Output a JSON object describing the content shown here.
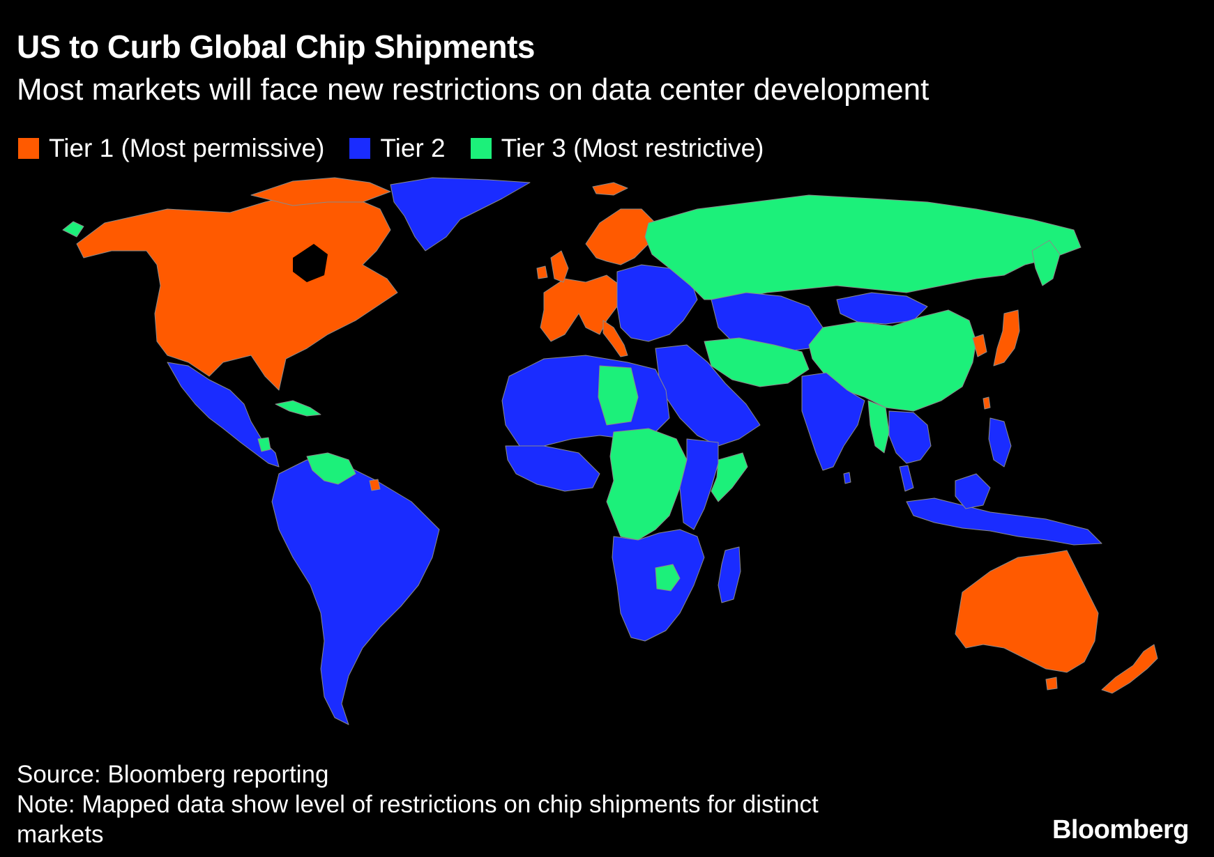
{
  "header": {
    "title": "US to Curb Global Chip Shipments",
    "subtitle": "Most markets will face new restrictions on data center development"
  },
  "legend": [
    {
      "label": "Tier 1 (Most permissive)",
      "color": "#ff5a00"
    },
    {
      "label": "Tier 2",
      "color": "#1a2cff"
    },
    {
      "label": "Tier 3 (Most restrictive)",
      "color": "#1cf07a"
    }
  ],
  "colors": {
    "tier1": "#ff5a00",
    "tier2": "#1a2cff",
    "tier3": "#1cf07a",
    "background": "#000000",
    "border": "#8a8a8a"
  },
  "map": {
    "projection": "world",
    "regions": [
      {
        "name": "North America",
        "tier": "tier1"
      },
      {
        "name": "Greenland",
        "tier": "tier2"
      },
      {
        "name": "Alaska",
        "tier": "tier1"
      },
      {
        "name": "Mexico and Central America",
        "tier": "tier2"
      },
      {
        "name": "Cuba",
        "tier": "tier3"
      },
      {
        "name": "South America",
        "tier": "tier2"
      },
      {
        "name": "Venezuela",
        "tier": "tier3"
      },
      {
        "name": "Western Europe",
        "tier": "tier1"
      },
      {
        "name": "Scandinavia",
        "tier": "tier1"
      },
      {
        "name": "Eastern Europe",
        "tier": "tier2"
      },
      {
        "name": "Russia",
        "tier": "tier3"
      },
      {
        "name": "Central Asia",
        "tier": "tier2"
      },
      {
        "name": "Mongolia",
        "tier": "tier2"
      },
      {
        "name": "China",
        "tier": "tier3"
      },
      {
        "name": "Iran and Afghanistan",
        "tier": "tier3"
      },
      {
        "name": "India",
        "tier": "tier2"
      },
      {
        "name": "Middle East",
        "tier": "tier2"
      },
      {
        "name": "North Africa",
        "tier": "tier2"
      },
      {
        "name": "Libya",
        "tier": "tier3"
      },
      {
        "name": "Central Africa",
        "tier": "tier3"
      },
      {
        "name": "Southern Africa",
        "tier": "tier2"
      },
      {
        "name": "Zimbabwe",
        "tier": "tier3"
      },
      {
        "name": "Somalia",
        "tier": "tier3"
      },
      {
        "name": "Madagascar",
        "tier": "tier2"
      },
      {
        "name": "Southeast Asia",
        "tier": "tier2"
      },
      {
        "name": "Myanmar",
        "tier": "tier3"
      },
      {
        "name": "Japan and Korea",
        "tier": "tier1"
      },
      {
        "name": "Taiwan",
        "tier": "tier1"
      },
      {
        "name": "Indonesia and Philippines",
        "tier": "tier2"
      },
      {
        "name": "Australia",
        "tier": "tier1"
      },
      {
        "name": "New Zealand",
        "tier": "tier1"
      }
    ]
  },
  "footer": {
    "source": "Source: Bloomberg reporting",
    "note": "Note: Mapped data show level of restrictions on chip shipments for distinct markets"
  },
  "brand": "Bloomberg"
}
